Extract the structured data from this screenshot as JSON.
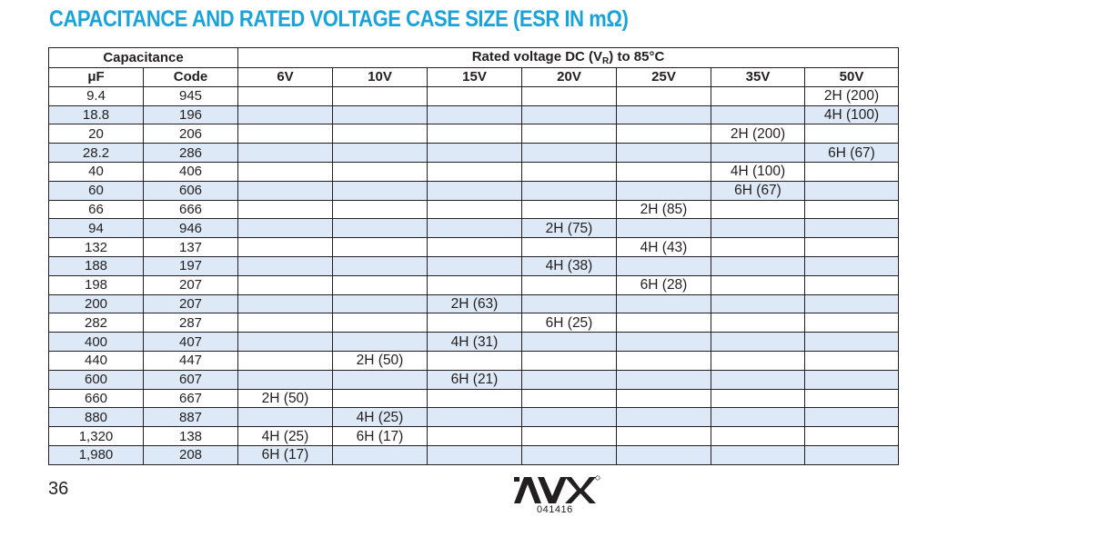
{
  "title": "CAPACITANCE AND RATED VOLTAGE CASE SIZE (ESR IN mΩ)",
  "header": {
    "capacitance_group": "Capacitance",
    "voltage_group_prefix": "Rated voltage DC (V",
    "voltage_group_subscript": "R",
    "voltage_group_suffix": ") to 85°C",
    "col_uf": "μF",
    "col_code": "Code",
    "voltages": [
      "6V",
      "10V",
      "15V",
      "20V",
      "25V",
      "35V",
      "50V"
    ]
  },
  "rows": [
    {
      "uf": "9.4",
      "code": "945",
      "cells": [
        "",
        "",
        "",
        "",
        "",
        "",
        "2H (200)"
      ]
    },
    {
      "uf": "18.8",
      "code": "196",
      "cells": [
        "",
        "",
        "",
        "",
        "",
        "",
        "4H (100)"
      ]
    },
    {
      "uf": "20",
      "code": "206",
      "cells": [
        "",
        "",
        "",
        "",
        "",
        "2H (200)",
        ""
      ]
    },
    {
      "uf": "28.2",
      "code": "286",
      "cells": [
        "",
        "",
        "",
        "",
        "",
        "",
        "6H (67)"
      ]
    },
    {
      "uf": "40",
      "code": "406",
      "cells": [
        "",
        "",
        "",
        "",
        "",
        "4H (100)",
        ""
      ]
    },
    {
      "uf": "60",
      "code": "606",
      "cells": [
        "",
        "",
        "",
        "",
        "",
        "6H (67)",
        ""
      ]
    },
    {
      "uf": "66",
      "code": "666",
      "cells": [
        "",
        "",
        "",
        "",
        "2H (85)",
        "",
        ""
      ]
    },
    {
      "uf": "94",
      "code": "946",
      "cells": [
        "",
        "",
        "",
        "2H (75)",
        "",
        "",
        ""
      ]
    },
    {
      "uf": "132",
      "code": "137",
      "cells": [
        "",
        "",
        "",
        "",
        "4H (43)",
        "",
        ""
      ]
    },
    {
      "uf": "188",
      "code": "197",
      "cells": [
        "",
        "",
        "",
        "4H (38)",
        "",
        "",
        ""
      ]
    },
    {
      "uf": "198",
      "code": "207",
      "cells": [
        "",
        "",
        "",
        "",
        "6H (28)",
        "",
        ""
      ]
    },
    {
      "uf": "200",
      "code": "207",
      "cells": [
        "",
        "",
        "2H (63)",
        "",
        "",
        "",
        ""
      ]
    },
    {
      "uf": "282",
      "code": "287",
      "cells": [
        "",
        "",
        "",
        "6H (25)",
        "",
        "",
        ""
      ]
    },
    {
      "uf": "400",
      "code": "407",
      "cells": [
        "",
        "",
        "4H (31)",
        "",
        "",
        "",
        ""
      ]
    },
    {
      "uf": "440",
      "code": "447",
      "cells": [
        "",
        "2H (50)",
        "",
        "",
        "",
        "",
        ""
      ]
    },
    {
      "uf": "600",
      "code": "607",
      "cells": [
        "",
        "",
        "6H (21)",
        "",
        "",
        "",
        ""
      ]
    },
    {
      "uf": "660",
      "code": "667",
      "cells": [
        "2H (50)",
        "",
        "",
        "",
        "",
        "",
        ""
      ]
    },
    {
      "uf": "880",
      "code": "887",
      "cells": [
        "",
        "4H (25)",
        "",
        "",
        "",
        "",
        ""
      ]
    },
    {
      "uf": "1,320",
      "code": "138",
      "cells": [
        "4H (25)",
        "6H (17)",
        "",
        "",
        "",
        "",
        ""
      ]
    },
    {
      "uf": "1,980",
      "code": "208",
      "cells": [
        "6H (17)",
        "",
        "",
        "",
        "",
        "",
        ""
      ]
    }
  ],
  "footer": {
    "page_number": "36",
    "logo_text": "AVX",
    "doc_code": "041416"
  },
  "colors": {
    "title": "#1aa3d9",
    "row_shade": "#dde9f6",
    "text": "#231f20"
  }
}
